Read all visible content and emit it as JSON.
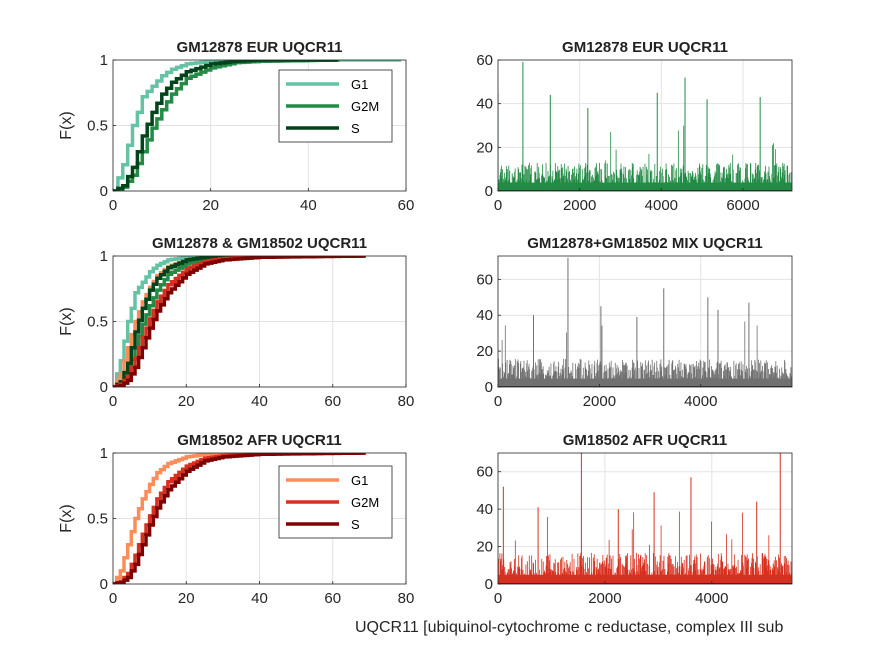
{
  "figure": {
    "xlabel": "UQCR11 [ubiquinol-cytochrome c reductase, complex III sub"
  },
  "chart_data": [
    {
      "type": "line",
      "title": "GM12878 EUR UQCR11",
      "ylabel": "F(x)",
      "xlim": [
        0,
        60
      ],
      "ylim": [
        0,
        1
      ],
      "xticks": [
        "0",
        "20",
        "40",
        "60"
      ],
      "yticks": [
        "0",
        "0.5",
        "1"
      ],
      "grid": true,
      "legend": "top-right",
      "series": [
        {
          "name": "G1",
          "color": "#66c2a4",
          "xmax": 59,
          "mean": 4.3,
          "x": [
            0,
            1,
            2,
            3,
            4,
            5,
            6,
            8,
            10,
            12,
            15,
            20,
            30,
            59
          ],
          "y": [
            0,
            0.1,
            0.2,
            0.35,
            0.5,
            0.6,
            0.72,
            0.8,
            0.88,
            0.93,
            0.97,
            0.99,
            1.0,
            1.0
          ]
        },
        {
          "name": "G2M",
          "color": "#238b45",
          "xmax": 46,
          "mean": 9.2,
          "x": [
            0,
            2,
            4,
            6,
            8,
            10,
            12,
            15,
            20,
            25,
            30,
            46
          ],
          "y": [
            0,
            0.03,
            0.12,
            0.3,
            0.48,
            0.62,
            0.74,
            0.86,
            0.94,
            0.98,
            0.99,
            1.0
          ]
        },
        {
          "name": "S",
          "color": "#00441b",
          "xmax": 46,
          "mean": 7.6,
          "x": [
            0,
            2,
            4,
            6,
            8,
            10,
            12,
            15,
            20,
            25,
            30,
            46
          ],
          "y": [
            0,
            0.04,
            0.18,
            0.42,
            0.6,
            0.74,
            0.83,
            0.91,
            0.97,
            0.99,
            1.0,
            1.0
          ]
        }
      ]
    },
    {
      "type": "bar",
      "title": "GM12878 EUR UQCR11",
      "xlim": [
        0,
        7200
      ],
      "ylim": [
        0,
        60
      ],
      "xticks": [
        "0",
        "2000",
        "4000",
        "6000"
      ],
      "yticks": [
        "0",
        "20",
        "40",
        "60"
      ],
      "grid": true,
      "color": "#238b45",
      "n_cells": 7200,
      "mean": 7,
      "peaks": [
        [
          0,
          45
        ],
        [
          610,
          59
        ],
        [
          4580,
          52
        ],
        [
          3900,
          45
        ],
        [
          1280,
          44
        ],
        [
          6420,
          43
        ],
        [
          5120,
          42
        ],
        [
          2200,
          38
        ]
      ]
    },
    {
      "type": "line",
      "title": "GM12878 & GM18502 UQCR11",
      "ylabel": "F(x)",
      "xlim": [
        0,
        80
      ],
      "ylim": [
        0,
        1
      ],
      "xticks": [
        "0",
        "20",
        "40",
        "60",
        "80"
      ],
      "yticks": [
        "0",
        "0.5",
        "1"
      ],
      "grid": true,
      "series": [
        {
          "name": "G1",
          "color": "#66c2a4",
          "xmax": 59,
          "mean": 4.3,
          "x": [
            0,
            1,
            2,
            3,
            4,
            5,
            6,
            8,
            10,
            12,
            15,
            20,
            30,
            59
          ],
          "y": [
            0,
            0.1,
            0.2,
            0.35,
            0.5,
            0.6,
            0.72,
            0.8,
            0.88,
            0.93,
            0.97,
            0.99,
            1.0,
            1.0
          ]
        },
        {
          "name": "G1",
          "color": "#fc8d59",
          "xmax": 69,
          "mean": 6.5,
          "x": [
            0,
            2,
            4,
            6,
            8,
            10,
            12,
            15,
            20,
            25,
            30,
            69
          ],
          "y": [
            0,
            0.1,
            0.3,
            0.5,
            0.65,
            0.76,
            0.85,
            0.92,
            0.97,
            0.99,
            1.0,
            1.0
          ]
        },
        {
          "name": "G2M",
          "color": "#238b45",
          "xmax": 46,
          "mean": 9.2,
          "x": [
            0,
            2,
            4,
            6,
            8,
            10,
            12,
            15,
            20,
            25,
            30,
            46
          ],
          "y": [
            0,
            0.03,
            0.12,
            0.3,
            0.48,
            0.62,
            0.74,
            0.86,
            0.94,
            0.98,
            0.99,
            1.0
          ]
        },
        {
          "name": "S",
          "color": "#00441b",
          "xmax": 46,
          "mean": 7.6,
          "x": [
            0,
            2,
            4,
            6,
            8,
            10,
            12,
            15,
            20,
            25,
            30,
            46
          ],
          "y": [
            0,
            0.04,
            0.18,
            0.42,
            0.6,
            0.74,
            0.83,
            0.91,
            0.97,
            0.99,
            1.0,
            1.0
          ]
        },
        {
          "name": "G2M",
          "color": "#d7301f",
          "xmax": 69,
          "mean": 10.5,
          "x": [
            0,
            2,
            4,
            6,
            8,
            10,
            12,
            15,
            20,
            25,
            30,
            40,
            69
          ],
          "y": [
            0,
            0.02,
            0.08,
            0.22,
            0.38,
            0.52,
            0.65,
            0.78,
            0.9,
            0.96,
            0.98,
            0.995,
            1.0
          ]
        },
        {
          "name": "S",
          "color": "#7f0000",
          "xmax": 69,
          "mean": 11.5,
          "x": [
            0,
            2,
            4,
            6,
            8,
            10,
            12,
            15,
            20,
            25,
            30,
            40,
            69
          ],
          "y": [
            0,
            0.01,
            0.05,
            0.15,
            0.3,
            0.45,
            0.58,
            0.72,
            0.86,
            0.94,
            0.97,
            0.99,
            1.0
          ]
        }
      ]
    },
    {
      "type": "bar",
      "title": "GM12878+GM18502 MIX UQCR11",
      "xlim": [
        0,
        5800
      ],
      "ylim": [
        0,
        73
      ],
      "xticks": [
        "0",
        "2000",
        "4000"
      ],
      "yticks": [
        "0",
        "20",
        "40",
        "60"
      ],
      "grid": true,
      "color": "#707070",
      "n_cells": 5800,
      "mean": 8.5,
      "peaks": [
        [
          1380,
          72
        ],
        [
          3270,
          55
        ],
        [
          4140,
          50
        ],
        [
          4950,
          47
        ],
        [
          2030,
          45
        ],
        [
          4340,
          43
        ],
        [
          700,
          40
        ],
        [
          2740,
          39
        ]
      ]
    },
    {
      "type": "line",
      "title": "GM18502 AFR UQCR11",
      "ylabel": "F(x)",
      "xlim": [
        0,
        80
      ],
      "ylim": [
        0,
        1
      ],
      "xticks": [
        "0",
        "20",
        "40",
        "60",
        "80"
      ],
      "yticks": [
        "0",
        "0.5",
        "1"
      ],
      "grid": true,
      "legend": "top-right",
      "series": [
        {
          "name": "G1",
          "color": "#fc8d59",
          "xmax": 69,
          "mean": 6.5,
          "x": [
            0,
            2,
            4,
            6,
            8,
            10,
            12,
            15,
            20,
            25,
            30,
            69
          ],
          "y": [
            0,
            0.1,
            0.3,
            0.5,
            0.65,
            0.76,
            0.85,
            0.92,
            0.97,
            0.99,
            1.0,
            1.0
          ]
        },
        {
          "name": "G2M",
          "color": "#d7301f",
          "xmax": 69,
          "mean": 10.5,
          "x": [
            0,
            2,
            4,
            6,
            8,
            10,
            12,
            15,
            20,
            25,
            30,
            40,
            69
          ],
          "y": [
            0,
            0.02,
            0.08,
            0.22,
            0.38,
            0.52,
            0.65,
            0.78,
            0.9,
            0.96,
            0.98,
            0.995,
            1.0
          ]
        },
        {
          "name": "S",
          "color": "#7f0000",
          "xmax": 69,
          "mean": 11.5,
          "x": [
            0,
            2,
            4,
            6,
            8,
            10,
            12,
            15,
            20,
            25,
            30,
            40,
            69
          ],
          "y": [
            0,
            0.01,
            0.05,
            0.15,
            0.3,
            0.45,
            0.58,
            0.72,
            0.86,
            0.94,
            0.97,
            0.99,
            1.0
          ]
        }
      ]
    },
    {
      "type": "bar",
      "title": "GM18502 AFR UQCR11",
      "xlim": [
        0,
        5500
      ],
      "ylim": [
        0,
        70
      ],
      "xticks": [
        "0",
        "2000",
        "4000"
      ],
      "yticks": [
        "0",
        "20",
        "40",
        "60"
      ],
      "grid": true,
      "color": "#d7301f",
      "n_cells": 5500,
      "mean": 9,
      "peaks": [
        [
          1560,
          70
        ],
        [
          5280,
          70
        ],
        [
          3610,
          57
        ],
        [
          2920,
          49
        ],
        [
          100,
          52
        ],
        [
          4840,
          44
        ],
        [
          750,
          41
        ],
        [
          2250,
          40
        ]
      ]
    }
  ]
}
